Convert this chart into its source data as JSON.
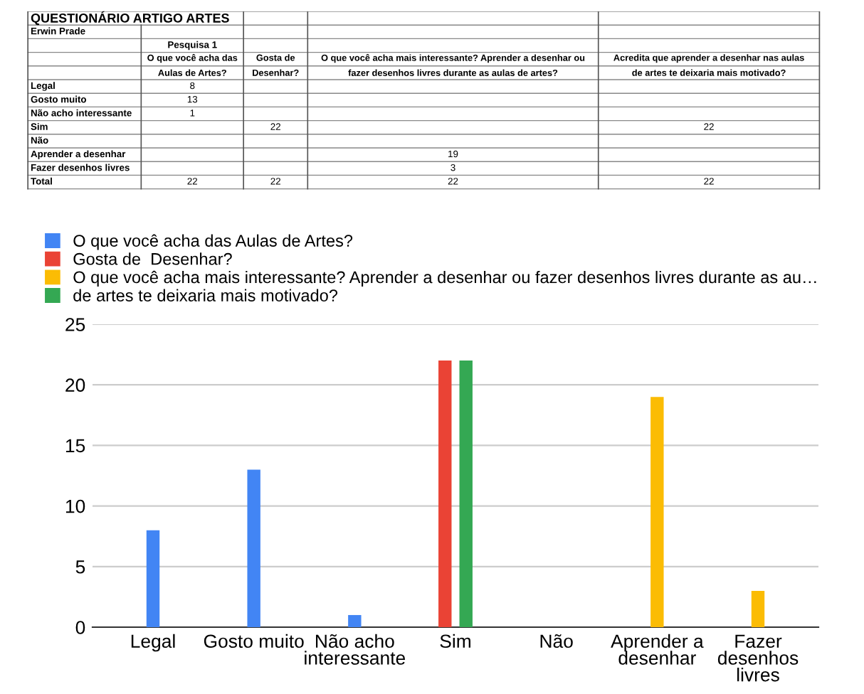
{
  "chart_data": [
    {
      "type": "other",
      "title": "QUESTIONÁRIO ARTIGO ARTES",
      "subtitle": "Erwin Prade",
      "annotations": [
        "Pesquisa 1"
      ],
      "data_labels": true,
      "categories": [
        "Legal",
        "Gosto muito",
        "Não acho interessante",
        "Sim",
        "Não",
        "Aprender a desenhar",
        "Fazer desenhos livres",
        "Total"
      ],
      "series": [
        {
          "name": "O que você acha das\nAulas de Artes?",
          "values": [
            8,
            13,
            1,
            null,
            null,
            null,
            null,
            22
          ]
        },
        {
          "name": "Gosta de\nDesenhar?",
          "values": [
            null,
            null,
            null,
            22,
            null,
            null,
            null,
            22
          ]
        },
        {
          "name": "O que você acha mais interessante? Aprender a desenhar ou\nfazer desenhos livres durante as aulas de artes?",
          "values": [
            null,
            null,
            null,
            null,
            null,
            19,
            3,
            22
          ]
        },
        {
          "name": "Acredita que aprender a desenhar nas aulas\nde artes te deixaria mais motivado?",
          "values": [
            null,
            null,
            null,
            22,
            null,
            null,
            null,
            22
          ]
        }
      ]
    },
    {
      "type": "bar",
      "categories": [
        "Legal",
        "Gosto muito",
        "Não acho\ninteressante",
        "Sim",
        "Não",
        "Aprender a\ndesenhar",
        "Fazer\ndesenhos\nlivres"
      ],
      "series": [
        {
          "name": "O que você acha das Aulas de Artes?",
          "color": "#4285f4",
          "values": [
            8,
            13,
            1,
            null,
            null,
            null,
            null
          ]
        },
        {
          "name": "Gosta de  Desenhar?",
          "color": "#ea4335",
          "values": [
            null,
            null,
            null,
            22,
            null,
            null,
            null
          ]
        },
        {
          "name": "O que você acha mais interessante? Aprender a desenhar ou fazer desenhos livres durante as au…",
          "color": "#fbbc04",
          "values": [
            null,
            null,
            null,
            null,
            null,
            19,
            3
          ]
        },
        {
          "name": "de artes te deixaria mais motivado?",
          "color": "#34a853",
          "values": [
            null,
            null,
            null,
            22,
            null,
            null,
            null
          ]
        }
      ],
      "ylim": [
        0,
        25
      ],
      "yticks": [
        0,
        5,
        10,
        15,
        20,
        25
      ],
      "grid": "y",
      "legend": "top"
    }
  ]
}
